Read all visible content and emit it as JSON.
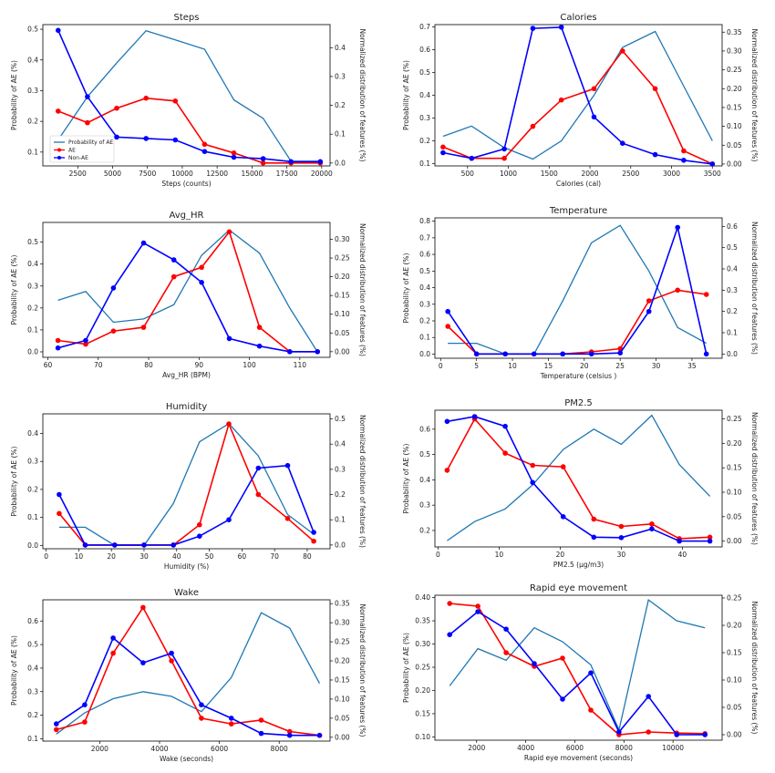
{
  "colors": {
    "prob": "#1f77b4",
    "ae": "#ff0000",
    "non_ae": "#0000ff"
  },
  "chart_data": [
    {
      "type": "line",
      "title": "Steps",
      "xlabel": "Steps (counts)",
      "ylabel": "Probability of AE (%)",
      "y2label": "Normalized distribution of features (%)",
      "xlim": [
        0,
        20600
      ],
      "ylim": [
        0.055,
        0.515
      ],
      "y2lim": [
        -0.01,
        0.48
      ],
      "xticks": [
        2500,
        5000,
        7500,
        10000,
        12500,
        15000,
        17500,
        20000
      ],
      "yticks": [
        0.1,
        0.2,
        0.3,
        0.4,
        0.5
      ],
      "y2ticks": [
        0.0,
        0.1,
        0.2,
        0.3,
        0.4
      ],
      "legend": {
        "position": "lower-left",
        "entries": [
          "Probability of AE",
          "AE",
          "Non-AE"
        ]
      },
      "series": [
        {
          "name": "Probability of AE",
          "axis": "left",
          "marker": false,
          "x": [
            1100,
            3200,
            5300,
            7400,
            9500,
            11600,
            13700,
            15800,
            17800,
            19900
          ],
          "y": [
            0.14,
            0.28,
            0.39,
            0.495,
            0.465,
            0.435,
            0.27,
            0.21,
            0.07,
            0.07
          ]
        },
        {
          "name": "AE",
          "axis": "right",
          "marker": true,
          "x": [
            1100,
            3200,
            5300,
            7400,
            9500,
            11600,
            13700,
            15800,
            17800,
            19900
          ],
          "y": [
            0.18,
            0.14,
            0.19,
            0.225,
            0.215,
            0.065,
            0.035,
            0.0,
            0.0,
            0.0
          ]
        },
        {
          "name": "Non-AE",
          "axis": "right",
          "marker": true,
          "x": [
            1100,
            3200,
            5300,
            7400,
            9500,
            11600,
            13700,
            15800,
            17800,
            19900
          ],
          "y": [
            0.46,
            0.23,
            0.09,
            0.085,
            0.08,
            0.04,
            0.02,
            0.015,
            0.005,
            0.005
          ]
        }
      ]
    },
    {
      "type": "line",
      "title": "Calories",
      "xlabel": "Calories (cal)",
      "ylabel": "Probability of AE (%)",
      "y2label": "Normalized distribution of features (%)",
      "xlim": [
        100,
        3620
      ],
      "ylim": [
        0.09,
        0.71
      ],
      "y2lim": [
        -0.005,
        0.37
      ],
      "xticks": [
        500,
        1000,
        1500,
        2000,
        2500,
        3000,
        3500
      ],
      "yticks": [
        0.1,
        0.2,
        0.3,
        0.4,
        0.5,
        0.6,
        0.7
      ],
      "y2ticks": [
        0.0,
        0.05,
        0.1,
        0.15,
        0.2,
        0.25,
        0.3,
        0.35
      ],
      "series": [
        {
          "name": "Probability of AE",
          "axis": "left",
          "marker": false,
          "x": [
            200,
            550,
            950,
            1300,
            1650,
            2050,
            2400,
            2800,
            3150,
            3500
          ],
          "y": [
            0.22,
            0.265,
            0.17,
            0.12,
            0.2,
            0.4,
            0.61,
            0.68,
            0.44,
            0.2
          ]
        },
        {
          "name": "AE",
          "axis": "right",
          "marker": true,
          "x": [
            200,
            550,
            950,
            1300,
            1650,
            2050,
            2400,
            2800,
            3150,
            3500
          ],
          "y": [
            0.045,
            0.015,
            0.015,
            0.1,
            0.17,
            0.2,
            0.3,
            0.2,
            0.035,
            0.0
          ]
        },
        {
          "name": "Non-AE",
          "axis": "right",
          "marker": true,
          "x": [
            200,
            550,
            950,
            1300,
            1650,
            2050,
            2400,
            2800,
            3150,
            3500
          ],
          "y": [
            0.03,
            0.015,
            0.04,
            0.36,
            0.363,
            0.125,
            0.055,
            0.025,
            0.01,
            0.0
          ]
        }
      ]
    },
    {
      "type": "line",
      "title": "Avg_HR",
      "xlabel": "Avg_HR (BPM)",
      "ylabel": "Probability of AE (%)",
      "y2label": "Normalized distribution of features (%)",
      "xlim": [
        59,
        116
      ],
      "ylim": [
        -0.025,
        0.59
      ],
      "y2lim": [
        -0.015,
        0.345
      ],
      "xticks": [
        60,
        70,
        80,
        90,
        100,
        110
      ],
      "yticks": [
        0.0,
        0.1,
        0.2,
        0.3,
        0.4,
        0.5
      ],
      "y2ticks": [
        0.0,
        0.05,
        0.1,
        0.15,
        0.2,
        0.25,
        0.3
      ],
      "series": [
        {
          "name": "Probability of AE",
          "axis": "left",
          "marker": false,
          "x": [
            62,
            67.5,
            73,
            79,
            85,
            90.5,
            96,
            102,
            108,
            113.5
          ],
          "y": [
            0.235,
            0.275,
            0.135,
            0.15,
            0.215,
            0.44,
            0.555,
            0.45,
            0.2,
            0.0
          ]
        },
        {
          "name": "AE",
          "axis": "right",
          "marker": true,
          "x": [
            62,
            67.5,
            73,
            79,
            85,
            90.5,
            96,
            102,
            108,
            113.5
          ],
          "y": [
            0.03,
            0.02,
            0.055,
            0.065,
            0.2,
            0.225,
            0.32,
            0.065,
            0.0,
            0.0
          ]
        },
        {
          "name": "Non-AE",
          "axis": "right",
          "marker": true,
          "x": [
            62,
            67.5,
            73,
            79,
            85,
            90.5,
            96,
            102,
            108,
            113.5
          ],
          "y": [
            0.01,
            0.03,
            0.17,
            0.29,
            0.245,
            0.185,
            0.035,
            0.015,
            0.0,
            0.0
          ]
        }
      ]
    },
    {
      "type": "line",
      "title": "Temperature",
      "xlabel": "Temperature (celsius )",
      "ylabel": "Probability of AE (%)",
      "y2label": "Normalized distribution of features (%)",
      "xlim": [
        -0.8,
        39.2
      ],
      "ylim": [
        -0.025,
        0.82
      ],
      "y2lim": [
        -0.02,
        0.64
      ],
      "xticks": [
        0,
        5,
        10,
        15,
        20,
        25,
        30,
        35
      ],
      "yticks": [
        0.0,
        0.1,
        0.2,
        0.3,
        0.4,
        0.5,
        0.6,
        0.7,
        0.8
      ],
      "y2ticks": [
        0.0,
        0.1,
        0.2,
        0.3,
        0.4,
        0.5,
        0.6
      ],
      "series": [
        {
          "name": "Probability of AE",
          "axis": "left",
          "marker": false,
          "x": [
            1,
            5,
            9,
            13,
            17,
            21,
            25,
            29,
            33,
            37
          ],
          "y": [
            0.065,
            0.065,
            0.0,
            0.0,
            0.32,
            0.67,
            0.775,
            0.5,
            0.16,
            0.065
          ]
        },
        {
          "name": "AE",
          "axis": "right",
          "marker": true,
          "x": [
            1,
            5,
            9,
            13,
            17,
            21,
            25,
            29,
            33,
            37
          ],
          "y": [
            0.13,
            0.0,
            0.0,
            0.0,
            0.0,
            0.01,
            0.025,
            0.25,
            0.3,
            0.28
          ]
        },
        {
          "name": "Non-AE",
          "axis": "right",
          "marker": true,
          "x": [
            1,
            5,
            9,
            13,
            17,
            21,
            25,
            29,
            33,
            37
          ],
          "y": [
            0.2,
            0.0,
            0.0,
            0.0,
            0.0,
            0.0,
            0.005,
            0.2,
            0.595,
            0.0
          ]
        }
      ]
    },
    {
      "type": "line",
      "title": "Humidity",
      "xlabel": "Humidity (%)",
      "ylabel": "Probability of AE (%)",
      "y2label": "Normalized distribution of features (%)",
      "xlim": [
        -1,
        87
      ],
      "ylim": [
        -0.012,
        0.47
      ],
      "y2lim": [
        -0.015,
        0.52
      ],
      "xticks": [
        0,
        10,
        20,
        30,
        40,
        50,
        60,
        70,
        80
      ],
      "yticks": [
        0.0,
        0.1,
        0.2,
        0.3,
        0.4
      ],
      "y2ticks": [
        0.0,
        0.1,
        0.2,
        0.3,
        0.4,
        0.5
      ],
      "series": [
        {
          "name": "Probability of AE",
          "axis": "left",
          "marker": false,
          "x": [
            4,
            12,
            21,
            30,
            39,
            47,
            56,
            65,
            74,
            82
          ],
          "y": [
            0.065,
            0.065,
            0.0,
            0.0,
            0.15,
            0.37,
            0.435,
            0.32,
            0.11,
            0.04
          ]
        },
        {
          "name": "AE",
          "axis": "right",
          "marker": true,
          "x": [
            4,
            12,
            21,
            30,
            39,
            47,
            56,
            65,
            74,
            82
          ],
          "y": [
            0.125,
            0.0,
            0.0,
            0.0,
            0.0,
            0.08,
            0.48,
            0.2,
            0.105,
            0.015
          ]
        },
        {
          "name": "Non-AE",
          "axis": "right",
          "marker": true,
          "x": [
            4,
            12,
            21,
            30,
            39,
            47,
            56,
            65,
            74,
            82
          ],
          "y": [
            0.2,
            0.0,
            0.0,
            0.0,
            0.0,
            0.035,
            0.1,
            0.305,
            0.315,
            0.05
          ]
        }
      ]
    },
    {
      "type": "line",
      "title": "PM2.5",
      "xlabel": "PM2.5 (µg/m3)",
      "ylabel": "Probability of AE (%)",
      "y2label": "Normalized distribution of features (%)",
      "xlim": [
        -0.5,
        46.5
      ],
      "ylim": [
        0.135,
        0.675
      ],
      "y2lim": [
        -0.012,
        0.268
      ],
      "xticks": [
        0,
        10,
        20,
        30,
        40
      ],
      "yticks": [
        0.2,
        0.3,
        0.4,
        0.5,
        0.6
      ],
      "y2ticks": [
        0.0,
        0.05,
        0.1,
        0.15,
        0.2,
        0.25
      ],
      "series": [
        {
          "name": "Probability of AE",
          "axis": "left",
          "marker": false,
          "x": [
            1.5,
            6,
            11,
            15.5,
            20.5,
            25.5,
            30,
            35,
            39.5,
            44.5
          ],
          "y": [
            0.16,
            0.235,
            0.285,
            0.38,
            0.52,
            0.6,
            0.54,
            0.655,
            0.46,
            0.335
          ]
        },
        {
          "name": "AE",
          "axis": "right",
          "marker": true,
          "x": [
            1.5,
            6,
            11,
            15.5,
            20.5,
            25.5,
            30,
            35,
            39.5,
            44.5
          ],
          "y": [
            0.145,
            0.25,
            0.18,
            0.155,
            0.152,
            0.045,
            0.03,
            0.035,
            0.005,
            0.008
          ]
        },
        {
          "name": "Non-AE",
          "axis": "right",
          "marker": true,
          "x": [
            1.5,
            6,
            11,
            15.5,
            20.5,
            25.5,
            30,
            35,
            39.5,
            44.5
          ],
          "y": [
            0.245,
            0.255,
            0.235,
            0.12,
            0.05,
            0.008,
            0.007,
            0.025,
            0.0,
            0.0
          ]
        }
      ]
    },
    {
      "type": "line",
      "title": "Wake",
      "xlabel": "Wake (seconds)",
      "ylabel": "Probability of AE (%)",
      "y2label": "Normalized distribution of features (%)",
      "xlim": [
        100,
        9700
      ],
      "ylim": [
        0.09,
        0.69
      ],
      "y2lim": [
        -0.01,
        0.36
      ],
      "xticks": [
        2000,
        4000,
        6000,
        8000
      ],
      "yticks": [
        0.1,
        0.2,
        0.3,
        0.4,
        0.5,
        0.6
      ],
      "y2ticks": [
        0.0,
        0.05,
        0.1,
        0.15,
        0.2,
        0.25,
        0.3,
        0.35
      ],
      "series": [
        {
          "name": "Probability of AE",
          "axis": "left",
          "marker": false,
          "x": [
            550,
            1500,
            2450,
            3450,
            4400,
            5400,
            6400,
            7400,
            8350,
            9350
          ],
          "y": [
            0.12,
            0.21,
            0.27,
            0.3,
            0.28,
            0.215,
            0.36,
            0.635,
            0.57,
            0.335
          ]
        },
        {
          "name": "AE",
          "axis": "right",
          "marker": true,
          "x": [
            550,
            1500,
            2450,
            3450,
            4400,
            5400,
            6400,
            7400,
            8350,
            9350
          ],
          "y": [
            0.02,
            0.04,
            0.22,
            0.34,
            0.2,
            0.05,
            0.035,
            0.045,
            0.015,
            0.005
          ]
        },
        {
          "name": "Non-AE",
          "axis": "right",
          "marker": true,
          "x": [
            550,
            1500,
            2450,
            3450,
            4400,
            5400,
            6400,
            7400,
            8350,
            9350
          ],
          "y": [
            0.035,
            0.085,
            0.26,
            0.195,
            0.22,
            0.085,
            0.05,
            0.01,
            0.005,
            0.005
          ]
        }
      ]
    },
    {
      "type": "line",
      "title": "Rapid eye movement",
      "xlabel": "Rapid eye movement (seconds)",
      "ylabel": "Probability of AE (%)",
      "y2label": "Normalized distribution of features (%)",
      "xlim": [
        300,
        12000
      ],
      "ylim": [
        0.093,
        0.405
      ],
      "y2lim": [
        -0.01,
        0.255
      ],
      "xticks": [
        2000,
        4000,
        6000,
        8000,
        10000
      ],
      "yticks": [
        0.1,
        0.15,
        0.2,
        0.25,
        0.3,
        0.35,
        0.4
      ],
      "y2ticks": [
        0.0,
        0.05,
        0.1,
        0.15,
        0.2,
        0.25
      ],
      "series": [
        {
          "name": "Probability of AE",
          "axis": "left",
          "marker": false,
          "x": [
            900,
            2050,
            3200,
            4350,
            5500,
            6650,
            7800,
            9000,
            10150,
            11300
          ],
          "y": [
            0.21,
            0.29,
            0.265,
            0.335,
            0.305,
            0.255,
            0.115,
            0.395,
            0.35,
            0.335
          ]
        },
        {
          "name": "AE",
          "axis": "right",
          "marker": true,
          "x": [
            900,
            2050,
            3200,
            4350,
            5500,
            6650,
            7800,
            9000,
            10150,
            11300
          ],
          "y": [
            0.24,
            0.235,
            0.15,
            0.125,
            0.14,
            0.045,
            0.0,
            0.005,
            0.003,
            0.002
          ]
        },
        {
          "name": "Non-AE",
          "axis": "right",
          "marker": true,
          "x": [
            900,
            2050,
            3200,
            4350,
            5500,
            6650,
            7800,
            9000,
            10150,
            11300
          ],
          "y": [
            0.183,
            0.225,
            0.193,
            0.13,
            0.065,
            0.113,
            0.005,
            0.07,
            0.0,
            0.0
          ]
        }
      ]
    }
  ]
}
